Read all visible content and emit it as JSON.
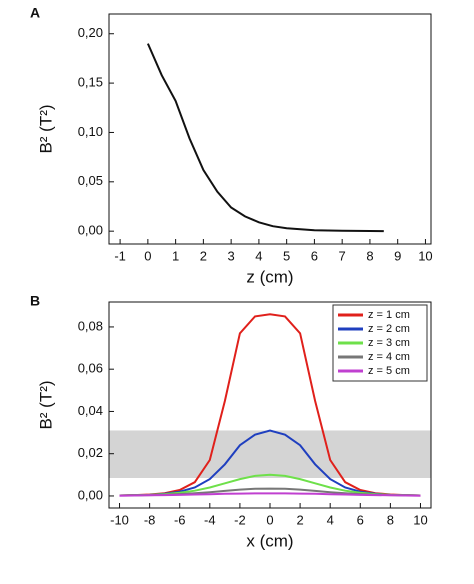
{
  "chart_data": [
    {
      "type": "line",
      "label": "A",
      "x_label": "z (cm)",
      "y_label": "B² (T²)",
      "x": [
        0,
        0.5,
        1,
        1.5,
        2,
        2.5,
        3,
        3.5,
        4,
        4.5,
        5,
        5.5,
        6,
        6.5,
        7,
        7.5,
        8,
        8.5
      ],
      "values": [
        0.19,
        0.158,
        0.132,
        0.094,
        0.062,
        0.04,
        0.024,
        0.015,
        0.009,
        0.005,
        0.003,
        0.002,
        0.001,
        0.0007,
        0.0004,
        0.0003,
        0.0002,
        0.0001
      ],
      "color": "#111111",
      "xlim": [
        -1.4,
        10.2
      ],
      "ylim": [
        -0.013,
        0.22
      ],
      "xticks": [
        -1,
        0,
        1,
        2,
        3,
        4,
        5,
        6,
        7,
        8,
        9,
        10
      ],
      "yticks": [
        {
          "value": 0,
          "label": "0,00"
        },
        {
          "value": 0.05,
          "label": "0,05"
        },
        {
          "value": 0.1,
          "label": "0,10"
        },
        {
          "value": 0.15,
          "label": "0,15"
        },
        {
          "value": 0.2,
          "label": "0,20"
        }
      ]
    },
    {
      "type": "line",
      "label": "B",
      "x_label": "x (cm)",
      "y_label": "B² (T²)",
      "x": [
        -10,
        -9,
        -8,
        -7,
        -6,
        -5,
        -4,
        -3,
        -2,
        -1,
        0,
        1,
        2,
        3,
        4,
        5,
        6,
        7,
        8,
        9,
        10
      ],
      "series": [
        {
          "name": "z = 1 cm",
          "color": "#e0201b",
          "values": [
            0.0002,
            0.0004,
            0.0007,
            0.0013,
            0.0028,
            0.0065,
            0.017,
            0.045,
            0.077,
            0.085,
            0.086,
            0.085,
            0.077,
            0.045,
            0.017,
            0.0065,
            0.0028,
            0.0013,
            0.0007,
            0.0004,
            0.0002
          ]
        },
        {
          "name": "z = 2 cm",
          "color": "#1f3fbf",
          "values": [
            0.0002,
            0.0003,
            0.0005,
            0.001,
            0.002,
            0.004,
            0.008,
            0.015,
            0.024,
            0.029,
            0.031,
            0.029,
            0.024,
            0.015,
            0.008,
            0.004,
            0.002,
            0.001,
            0.0005,
            0.0003,
            0.0002
          ]
        },
        {
          "name": "z = 3 cm",
          "color": "#6ee04a",
          "values": [
            0.0002,
            0.0003,
            0.0005,
            0.0009,
            0.0015,
            0.0025,
            0.004,
            0.006,
            0.008,
            0.0095,
            0.01,
            0.0095,
            0.008,
            0.006,
            0.004,
            0.0025,
            0.0015,
            0.0009,
            0.0005,
            0.0003,
            0.0002
          ]
        },
        {
          "name": "z = 4 cm",
          "color": "#777777",
          "values": [
            0.0002,
            0.0003,
            0.0004,
            0.0006,
            0.0009,
            0.0013,
            0.0018,
            0.0024,
            0.003,
            0.0034,
            0.0035,
            0.0034,
            0.003,
            0.0024,
            0.0018,
            0.0013,
            0.0009,
            0.0006,
            0.0004,
            0.0003,
            0.0002
          ]
        },
        {
          "name": "z = 5 cm",
          "color": "#c040d0",
          "values": [
            0.0001,
            0.0002,
            0.0003,
            0.0004,
            0.0005,
            0.0007,
            0.0008,
            0.001,
            0.0011,
            0.0012,
            0.0012,
            0.0012,
            0.0011,
            0.001,
            0.0008,
            0.0007,
            0.0005,
            0.0004,
            0.0003,
            0.0002,
            0.0001
          ]
        }
      ],
      "band": [
        0.0085,
        0.031
      ],
      "band_color": "#d4d4d4",
      "legend": "upper right",
      "xlim": [
        -10.7,
        10.7
      ],
      "ylim": [
        -0.0057,
        0.0918
      ],
      "xticks": [
        -10,
        -8,
        -6,
        -4,
        -2,
        0,
        2,
        4,
        6,
        8,
        10
      ],
      "yticks": [
        {
          "value": 0,
          "label": "0,00"
        },
        {
          "value": 0.02,
          "label": "0,02"
        },
        {
          "value": 0.04,
          "label": "0,04"
        },
        {
          "value": 0.06,
          "label": "0,06"
        },
        {
          "value": 0.08,
          "label": "0,08"
        }
      ]
    }
  ]
}
